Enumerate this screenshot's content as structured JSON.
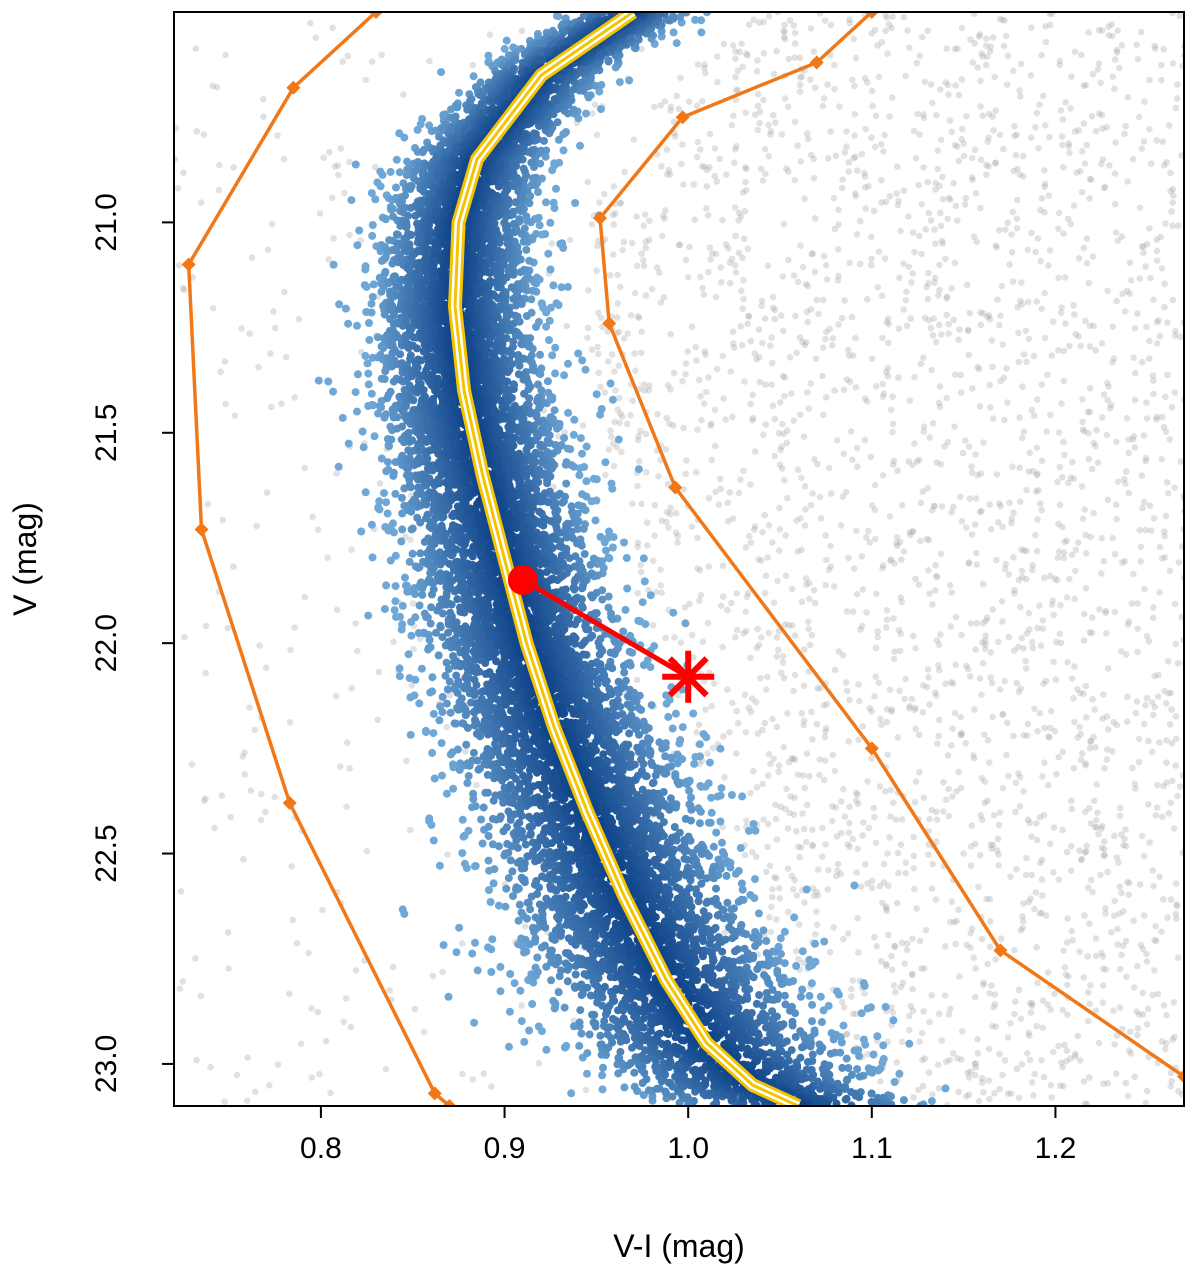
{
  "chart_data": {
    "type": "scatter",
    "title": "",
    "xlabel": "V-I (mag)",
    "ylabel": "V (mag)",
    "xlim": [
      0.72,
      1.27
    ],
    "ylim": [
      23.1,
      20.5
    ],
    "y_inverted": true,
    "grid": false,
    "legend": "none",
    "xticks": [
      0.8,
      0.9,
      1.0,
      1.1,
      1.2
    ],
    "xtick_labels": [
      "0.8",
      "0.9",
      "1.0",
      "1.1",
      "1.2"
    ],
    "yticks": [
      21.0,
      21.5,
      22.0,
      22.5,
      23.0
    ],
    "ytick_labels": [
      "21.0",
      "21.5",
      "22.0",
      "22.5",
      "23.0"
    ],
    "series": [
      {
        "kind": "fiducial-line",
        "color": "#f5c400",
        "points": [
          [
            0.97,
            20.5
          ],
          [
            0.92,
            20.65
          ],
          [
            0.885,
            20.85
          ],
          [
            0.875,
            21.0
          ],
          [
            0.873,
            21.2
          ],
          [
            0.878,
            21.4
          ],
          [
            0.888,
            21.6
          ],
          [
            0.9,
            21.8
          ],
          [
            0.912,
            22.0
          ],
          [
            0.927,
            22.2
          ],
          [
            0.945,
            22.4
          ],
          [
            0.965,
            22.6
          ],
          [
            0.988,
            22.8
          ],
          [
            1.01,
            22.95
          ],
          [
            1.035,
            23.05
          ],
          [
            1.06,
            23.1
          ]
        ]
      },
      {
        "kind": "selection-boundary-left",
        "color": "#f07818",
        "points": [
          [
            0.83,
            20.5
          ],
          [
            0.785,
            20.68
          ],
          [
            0.728,
            21.1
          ],
          [
            0.735,
            21.73
          ],
          [
            0.783,
            22.38
          ],
          [
            0.862,
            23.07
          ],
          [
            0.87,
            23.1
          ]
        ]
      },
      {
        "kind": "selection-boundary-right",
        "color": "#f07818",
        "points": [
          [
            1.1,
            20.5
          ],
          [
            1.07,
            20.62
          ],
          [
            0.997,
            20.75
          ],
          [
            0.952,
            20.99
          ],
          [
            0.957,
            21.24
          ],
          [
            0.993,
            21.63
          ],
          [
            1.1,
            22.25
          ],
          [
            1.17,
            22.73
          ],
          [
            1.27,
            23.03
          ]
        ]
      }
    ],
    "marked_point": {
      "x": 0.91,
      "y": 21.85,
      "color": "#ff0000"
    },
    "marked_star": {
      "x": 1.0,
      "y": 22.08,
      "color": "#ff0000"
    },
    "colors": {
      "field_stars": "#a9a9a9",
      "member_light": "#6fa8d6",
      "member_dark": "#0b3f86",
      "fiducial": "#f5c400",
      "boundary": "#f07818",
      "highlight": "#ff0000"
    }
  }
}
